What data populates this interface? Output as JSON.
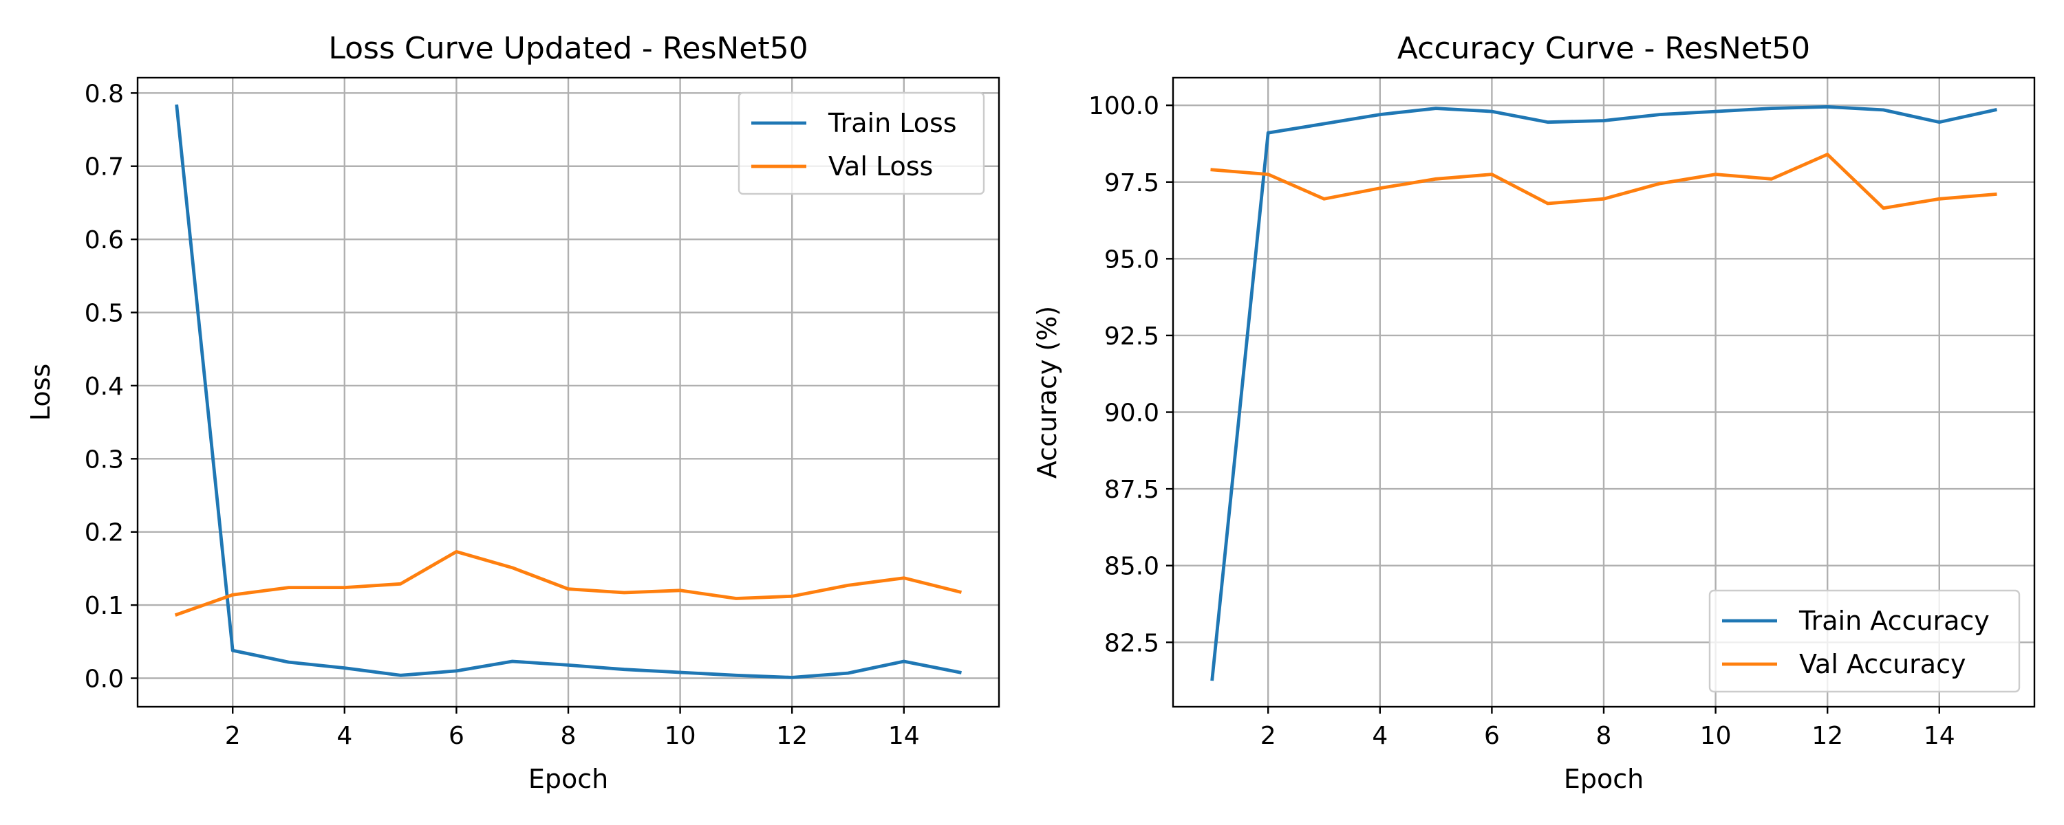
{
  "chart_data": [
    {
      "type": "line",
      "title": "Loss Curve Updated - ResNet50",
      "xlabel": "Epoch",
      "ylabel": "Loss",
      "xlim": [
        0.3,
        15.7
      ],
      "ylim": [
        -0.039,
        0.821
      ],
      "xticks": [
        2,
        4,
        6,
        8,
        10,
        12,
        14
      ],
      "xtick_labels": [
        "2",
        "4",
        "6",
        "8",
        "10",
        "12",
        "14"
      ],
      "yticks": [
        0.0,
        0.1,
        0.2,
        0.3,
        0.4,
        0.5,
        0.6,
        0.7,
        0.8
      ],
      "ytick_labels": [
        "0.0",
        "0.1",
        "0.2",
        "0.3",
        "0.4",
        "0.5",
        "0.6",
        "0.7",
        "0.8"
      ],
      "grid": true,
      "legend_position": "top-right",
      "x": [
        1,
        2,
        3,
        4,
        5,
        6,
        7,
        8,
        9,
        10,
        11,
        12,
        13,
        14,
        15
      ],
      "series": [
        {
          "name": "Train Loss",
          "color": "#1f77b4",
          "values": [
            0.782,
            0.038,
            0.022,
            0.014,
            0.004,
            0.01,
            0.023,
            0.018,
            0.012,
            0.008,
            0.004,
            0.001,
            0.007,
            0.023,
            0.008
          ]
        },
        {
          "name": "Val Loss",
          "color": "#ff7f0e",
          "values": [
            0.087,
            0.114,
            0.124,
            0.124,
            0.129,
            0.173,
            0.151,
            0.122,
            0.117,
            0.12,
            0.109,
            0.112,
            0.127,
            0.137,
            0.118
          ]
        }
      ]
    },
    {
      "type": "line",
      "title": "Accuracy Curve - ResNet50",
      "xlabel": "Epoch",
      "ylabel": "Accuracy (%)",
      "xlim": [
        0.3,
        15.7
      ],
      "ylim": [
        80.4,
        100.9
      ],
      "xticks": [
        2,
        4,
        6,
        8,
        10,
        12,
        14
      ],
      "xtick_labels": [
        "2",
        "4",
        "6",
        "8",
        "10",
        "12",
        "14"
      ],
      "yticks": [
        82.5,
        85.0,
        87.5,
        90.0,
        92.5,
        95.0,
        97.5,
        100.0
      ],
      "ytick_labels": [
        "82.5",
        "85.0",
        "87.5",
        "90.0",
        "92.5",
        "95.0",
        "97.5",
        "100.0"
      ],
      "grid": true,
      "legend_position": "bottom-right",
      "x": [
        1,
        2,
        3,
        4,
        5,
        6,
        7,
        8,
        9,
        10,
        11,
        12,
        13,
        14,
        15
      ],
      "series": [
        {
          "name": "Train Accuracy",
          "color": "#1f77b4",
          "values": [
            81.3,
            99.1,
            99.4,
            99.7,
            99.9,
            99.8,
            99.45,
            99.5,
            99.7,
            99.8,
            99.9,
            99.95,
            99.85,
            99.45,
            99.85
          ]
        },
        {
          "name": "Val Accuracy",
          "color": "#ff7f0e",
          "values": [
            97.9,
            97.75,
            96.95,
            97.3,
            97.6,
            97.75,
            96.8,
            96.95,
            97.45,
            97.75,
            97.6,
            98.4,
            96.65,
            96.95,
            97.1
          ]
        }
      ]
    }
  ]
}
